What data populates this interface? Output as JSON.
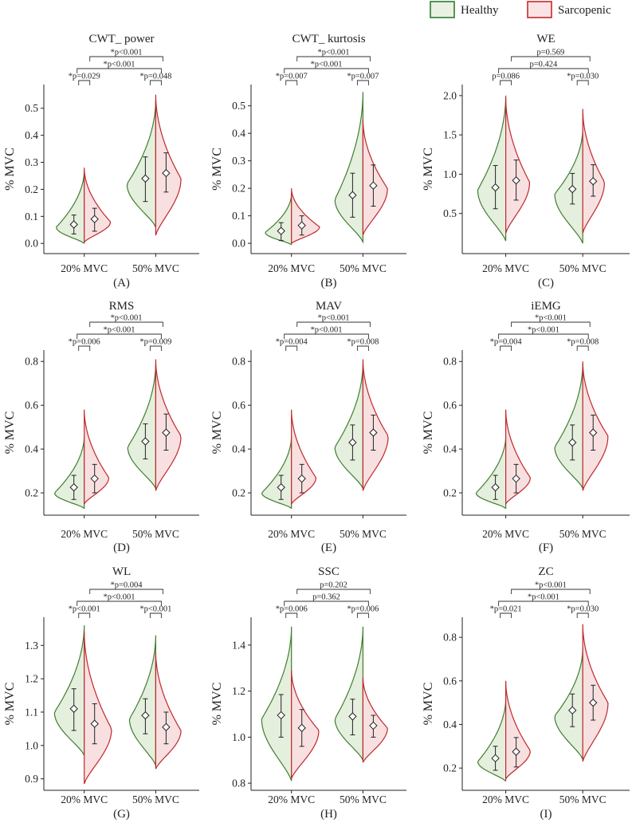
{
  "legend": [
    {
      "label": "Healthy",
      "stroke": "#2e7d32",
      "fill": "#e8f1e2"
    },
    {
      "label": "Sarcopenic",
      "stroke": "#c62828",
      "fill": "#f9e3e4"
    }
  ],
  "colors": {
    "healthy_fill": "#e5efde",
    "healthy_stroke": "#3f7f2e",
    "sarc_fill": "#f8e0e1",
    "sarc_stroke": "#c0282d",
    "bracket": "#333333"
  },
  "chart_data": [
    {
      "type": "violin",
      "title": "CWT_ power",
      "panel": "(A)",
      "ylabel": "% MVC",
      "categories": [
        "20% MVC",
        "50% MVC"
      ],
      "ylim": [
        -0.02,
        0.57
      ],
      "yticks": [
        0.0,
        0.1,
        0.2,
        0.3,
        0.4,
        0.5
      ],
      "tick_labels": [
        "0.0",
        "0.1",
        "0.2",
        "0.3",
        "0.4",
        "0.5"
      ],
      "series": [
        {
          "name": "Healthy",
          "groups": [
            {
              "mean": 0.07,
              "lo": 0.035,
              "hi": 0.105,
              "min": 0.0,
              "max": 0.27,
              "mode": 0.06,
              "width": 0.8
            },
            {
              "mean": 0.24,
              "lo": 0.155,
              "hi": 0.32,
              "min": 0.06,
              "max": 0.53,
              "mode": 0.22,
              "width": 0.82
            }
          ]
        },
        {
          "name": "Sarcopenic",
          "groups": [
            {
              "mean": 0.09,
              "lo": 0.045,
              "hi": 0.13,
              "min": 0.005,
              "max": 0.28,
              "mode": 0.08,
              "width": 0.75
            },
            {
              "mean": 0.26,
              "lo": 0.19,
              "hi": 0.335,
              "min": 0.03,
              "max": 0.55,
              "mode": 0.24,
              "width": 0.72
            }
          ]
        }
      ],
      "comparisons": [
        {
          "text": "*p=0.029",
          "level": 0,
          "g1": 0,
          "g2": 0
        },
        {
          "text": "*p=0.048",
          "level": 0,
          "g1": 1,
          "g2": 1
        },
        {
          "text": "*p<0.001",
          "level": 1,
          "g1": 0,
          "g2": 1,
          "pair": "healthy"
        },
        {
          "text": "*p<0.001",
          "level": 2,
          "g1": 0,
          "g2": 1,
          "pair": "sarc"
        }
      ]
    },
    {
      "type": "violin",
      "title": "CWT_ kurtosis",
      "panel": "(B)",
      "ylabel": "% MVC",
      "categories": [
        "20% MVC",
        "50% MVC"
      ],
      "ylim": [
        -0.02,
        0.56
      ],
      "yticks": [
        0.0,
        0.1,
        0.2,
        0.3,
        0.4,
        0.5
      ],
      "tick_labels": [
        "0.0",
        "0.1",
        "0.2",
        "0.3",
        "0.4",
        "0.5"
      ],
      "series": [
        {
          "name": "Healthy",
          "groups": [
            {
              "mean": 0.045,
              "lo": 0.01,
              "hi": 0.075,
              "min": -0.005,
              "max": 0.18,
              "mode": 0.04,
              "width": 0.75
            },
            {
              "mean": 0.175,
              "lo": 0.095,
              "hi": 0.255,
              "min": 0.005,
              "max": 0.55,
              "mode": 0.16,
              "width": 0.8
            }
          ]
        },
        {
          "name": "Sarcopenic",
          "groups": [
            {
              "mean": 0.065,
              "lo": 0.03,
              "hi": 0.1,
              "min": 0.0,
              "max": 0.2,
              "mode": 0.06,
              "width": 0.8
            },
            {
              "mean": 0.21,
              "lo": 0.135,
              "hi": 0.285,
              "min": 0.03,
              "max": 0.45,
              "mode": 0.2,
              "width": 0.7
            }
          ]
        }
      ],
      "comparisons": [
        {
          "text": "*p=0.007",
          "level": 0,
          "g1": 0,
          "g2": 0
        },
        {
          "text": "*p=0.007",
          "level": 0,
          "g1": 1,
          "g2": 1
        },
        {
          "text": "*p<0.001",
          "level": 1,
          "g1": 0,
          "g2": 1,
          "pair": "healthy"
        },
        {
          "text": "*p<0.001",
          "level": 2,
          "g1": 0,
          "g2": 1,
          "pair": "sarc"
        }
      ]
    },
    {
      "type": "violin",
      "title": "WE",
      "panel": "(C)",
      "ylabel": "% MVC",
      "categories": [
        "20% MVC",
        "50% MVC"
      ],
      "ylim": [
        0.05,
        2.08
      ],
      "yticks": [
        0.5,
        1.0,
        1.5,
        2.0
      ],
      "tick_labels": [
        "0.5",
        "1.0",
        "1.5",
        "2.0"
      ],
      "series": [
        {
          "name": "Healthy",
          "groups": [
            {
              "mean": 0.83,
              "lo": 0.56,
              "hi": 1.11,
              "min": 0.15,
              "max": 2.0,
              "mode": 0.8,
              "width": 0.8
            },
            {
              "mean": 0.81,
              "lo": 0.62,
              "hi": 1.01,
              "min": 0.12,
              "max": 1.58,
              "mode": 0.75,
              "width": 0.8
            }
          ]
        },
        {
          "name": "Sarcopenic",
          "groups": [
            {
              "mean": 0.92,
              "lo": 0.67,
              "hi": 1.18,
              "min": 0.25,
              "max": 1.98,
              "mode": 0.9,
              "width": 0.68
            },
            {
              "mean": 0.91,
              "lo": 0.72,
              "hi": 1.12,
              "min": 0.25,
              "max": 1.83,
              "mode": 0.9,
              "width": 0.62
            }
          ]
        }
      ],
      "comparisons": [
        {
          "text": "p=0.086",
          "level": 0,
          "g1": 0,
          "g2": 0
        },
        {
          "text": "*p=0.030",
          "level": 0,
          "g1": 1,
          "g2": 1
        },
        {
          "text": "p=0.424",
          "level": 1,
          "g1": 0,
          "g2": 1,
          "pair": "healthy"
        },
        {
          "text": "p=0.569",
          "level": 2,
          "g1": 0,
          "g2": 1,
          "pair": "sarc"
        }
      ]
    },
    {
      "type": "violin",
      "title": "RMS",
      "panel": "(D)",
      "ylabel": "% MVC",
      "categories": [
        "20% MVC",
        "50% MVC"
      ],
      "ylim": [
        0.12,
        0.83
      ],
      "yticks": [
        0.2,
        0.4,
        0.6,
        0.8
      ],
      "tick_labels": [
        "0.2",
        "0.4",
        "0.6",
        "0.8"
      ],
      "series": [
        {
          "name": "Healthy",
          "groups": [
            {
              "mean": 0.225,
              "lo": 0.17,
              "hi": 0.28,
              "min": 0.13,
              "max": 0.46,
              "mode": 0.2,
              "width": 0.85
            },
            {
              "mean": 0.435,
              "lo": 0.355,
              "hi": 0.515,
              "min": 0.22,
              "max": 0.79,
              "mode": 0.41,
              "width": 0.8
            }
          ]
        },
        {
          "name": "Sarcopenic",
          "groups": [
            {
              "mean": 0.265,
              "lo": 0.2,
              "hi": 0.33,
              "min": 0.15,
              "max": 0.58,
              "mode": 0.27,
              "width": 0.7
            },
            {
              "mean": 0.475,
              "lo": 0.395,
              "hi": 0.56,
              "min": 0.21,
              "max": 0.81,
              "mode": 0.46,
              "width": 0.72
            }
          ]
        }
      ],
      "comparisons": [
        {
          "text": "*p=0.006",
          "level": 0,
          "g1": 0,
          "g2": 0
        },
        {
          "text": "*p=0.009",
          "level": 0,
          "g1": 1,
          "g2": 1
        },
        {
          "text": "*p<0.001",
          "level": 1,
          "g1": 0,
          "g2": 1,
          "pair": "healthy"
        },
        {
          "text": "*p<0.001",
          "level": 2,
          "g1": 0,
          "g2": 1,
          "pair": "sarc"
        }
      ]
    },
    {
      "type": "violin",
      "title": "MAV",
      "panel": "(E)",
      "ylabel": "% MVC",
      "categories": [
        "20% MVC",
        "50% MVC"
      ],
      "ylim": [
        0.12,
        0.83
      ],
      "yticks": [
        0.2,
        0.4,
        0.6,
        0.8
      ],
      "tick_labels": [
        "0.2",
        "0.4",
        "0.6",
        "0.8"
      ],
      "series": [
        {
          "name": "Healthy",
          "groups": [
            {
              "mean": 0.225,
              "lo": 0.17,
              "hi": 0.28,
              "min": 0.13,
              "max": 0.46,
              "mode": 0.2,
              "width": 0.85
            },
            {
              "mean": 0.43,
              "lo": 0.35,
              "hi": 0.51,
              "min": 0.22,
              "max": 0.79,
              "mode": 0.41,
              "width": 0.8
            }
          ]
        },
        {
          "name": "Sarcopenic",
          "groups": [
            {
              "mean": 0.265,
              "lo": 0.2,
              "hi": 0.33,
              "min": 0.15,
              "max": 0.58,
              "mode": 0.27,
              "width": 0.7
            },
            {
              "mean": 0.475,
              "lo": 0.395,
              "hi": 0.555,
              "min": 0.21,
              "max": 0.81,
              "mode": 0.46,
              "width": 0.72
            }
          ]
        }
      ],
      "comparisons": [
        {
          "text": "*p=0.004",
          "level": 0,
          "g1": 0,
          "g2": 0
        },
        {
          "text": "*p=0.008",
          "level": 0,
          "g1": 1,
          "g2": 1
        },
        {
          "text": "*p<0.001",
          "level": 1,
          "g1": 0,
          "g2": 1,
          "pair": "healthy"
        },
        {
          "text": "*p<0.001",
          "level": 2,
          "g1": 0,
          "g2": 1,
          "pair": "sarc"
        }
      ]
    },
    {
      "type": "violin",
      "title": "iEMG",
      "panel": "(F)",
      "ylabel": "% MVC",
      "categories": [
        "20% MVC",
        "50% MVC"
      ],
      "ylim": [
        0.12,
        0.83
      ],
      "yticks": [
        0.2,
        0.4,
        0.6,
        0.8
      ],
      "tick_labels": [
        "0.2",
        "0.4",
        "0.6",
        "0.8"
      ],
      "series": [
        {
          "name": "Healthy",
          "groups": [
            {
              "mean": 0.225,
              "lo": 0.17,
              "hi": 0.28,
              "min": 0.13,
              "max": 0.46,
              "mode": 0.2,
              "width": 0.85
            },
            {
              "mean": 0.43,
              "lo": 0.35,
              "hi": 0.51,
              "min": 0.22,
              "max": 0.79,
              "mode": 0.41,
              "width": 0.8
            }
          ]
        },
        {
          "name": "Sarcopenic",
          "groups": [
            {
              "mean": 0.265,
              "lo": 0.2,
              "hi": 0.33,
              "min": 0.15,
              "max": 0.58,
              "mode": 0.27,
              "width": 0.7
            },
            {
              "mean": 0.475,
              "lo": 0.395,
              "hi": 0.555,
              "min": 0.21,
              "max": 0.8,
              "mode": 0.46,
              "width": 0.72
            }
          ]
        }
      ],
      "comparisons": [
        {
          "text": "*p=0.004",
          "level": 0,
          "g1": 0,
          "g2": 0
        },
        {
          "text": "*p=0.008",
          "level": 0,
          "g1": 1,
          "g2": 1
        },
        {
          "text": "*p<0.001",
          "level": 1,
          "g1": 0,
          "g2": 1,
          "pair": "healthy"
        },
        {
          "text": "*p<0.001",
          "level": 2,
          "g1": 0,
          "g2": 1,
          "pair": "sarc"
        }
      ]
    },
    {
      "type": "violin",
      "title": "WL",
      "panel": "(G)",
      "ylabel": "% MVC",
      "categories": [
        "20% MVC",
        "50% MVC"
      ],
      "ylim": [
        0.88,
        1.37
      ],
      "yticks": [
        0.9,
        1.0,
        1.1,
        1.2,
        1.3
      ],
      "tick_labels": [
        "0.9",
        "1.0",
        "1.1",
        "1.2",
        "1.3"
      ],
      "series": [
        {
          "name": "Healthy",
          "groups": [
            {
              "mean": 1.11,
              "lo": 1.045,
              "hi": 1.17,
              "min": 0.97,
              "max": 1.36,
              "mode": 1.1,
              "width": 0.85
            },
            {
              "mean": 1.09,
              "lo": 1.035,
              "hi": 1.14,
              "min": 0.94,
              "max": 1.33,
              "mode": 1.08,
              "width": 0.75
            }
          ]
        },
        {
          "name": "Sarcopenic",
          "groups": [
            {
              "mean": 1.065,
              "lo": 1.005,
              "hi": 1.125,
              "min": 0.885,
              "max": 1.34,
              "mode": 1.05,
              "width": 0.78
            },
            {
              "mean": 1.055,
              "lo": 1.005,
              "hi": 1.1,
              "min": 0.93,
              "max": 1.28,
              "mode": 1.045,
              "width": 0.72
            }
          ]
        }
      ],
      "comparisons": [
        {
          "text": "*p<0.001",
          "level": 0,
          "g1": 0,
          "g2": 0
        },
        {
          "text": "*p<0.001",
          "level": 0,
          "g1": 1,
          "g2": 1
        },
        {
          "text": "*p<0.001",
          "level": 1,
          "g1": 0,
          "g2": 1,
          "pair": "healthy"
        },
        {
          "text": "*p=0.004",
          "level": 2,
          "g1": 0,
          "g2": 1,
          "pair": "sarc"
        }
      ]
    },
    {
      "type": "violin",
      "title": "SSC",
      "panel": "(H)",
      "ylabel": "% MVC",
      "categories": [
        "20% MVC",
        "50% MVC"
      ],
      "ylim": [
        0.79,
        1.5
      ],
      "yticks": [
        0.8,
        1.0,
        1.2,
        1.4
      ],
      "tick_labels": [
        "0.8",
        "1.0",
        "1.2",
        "1.4"
      ],
      "series": [
        {
          "name": "Healthy",
          "groups": [
            {
              "mean": 1.095,
              "lo": 1.0,
              "hi": 1.185,
              "min": 0.81,
              "max": 1.48,
              "mode": 1.08,
              "width": 0.85
            },
            {
              "mean": 1.09,
              "lo": 1.01,
              "hi": 1.165,
              "min": 0.9,
              "max": 1.48,
              "mode": 1.08,
              "width": 0.8
            }
          ]
        },
        {
          "name": "Sarcopenic",
          "groups": [
            {
              "mean": 1.04,
              "lo": 0.96,
              "hi": 1.12,
              "min": 0.82,
              "max": 1.29,
              "mode": 1.03,
              "width": 0.78
            },
            {
              "mean": 1.05,
              "lo": 1.0,
              "hi": 1.095,
              "min": 0.89,
              "max": 1.26,
              "mode": 1.04,
              "width": 0.7
            }
          ]
        }
      ],
      "comparisons": [
        {
          "text": "*p=0.006",
          "level": 0,
          "g1": 0,
          "g2": 0
        },
        {
          "text": "*p=0.006",
          "level": 0,
          "g1": 1,
          "g2": 1
        },
        {
          "text": "p=0.362",
          "level": 1,
          "g1": 0,
          "g2": 1,
          "pair": "healthy"
        },
        {
          "text": "p=0.202",
          "level": 2,
          "g1": 0,
          "g2": 1,
          "pair": "sarc"
        }
      ]
    },
    {
      "type": "violin",
      "title": "ZC",
      "panel": "(I)",
      "ylabel": "% MVC",
      "categories": [
        "20% MVC",
        "50% MVC"
      ],
      "ylim": [
        0.12,
        0.87
      ],
      "yticks": [
        0.2,
        0.4,
        0.6,
        0.8
      ],
      "tick_labels": [
        "0.2",
        "0.4",
        "0.6",
        "0.8"
      ],
      "series": [
        {
          "name": "Healthy",
          "groups": [
            {
              "mean": 0.245,
              "lo": 0.19,
              "hi": 0.3,
              "min": 0.14,
              "max": 0.52,
              "mode": 0.23,
              "width": 0.8
            },
            {
              "mean": 0.465,
              "lo": 0.39,
              "hi": 0.54,
              "min": 0.24,
              "max": 0.75,
              "mode": 0.44,
              "width": 0.8
            }
          ]
        },
        {
          "name": "Sarcopenic",
          "groups": [
            {
              "mean": 0.275,
              "lo": 0.205,
              "hi": 0.34,
              "min": 0.15,
              "max": 0.6,
              "mode": 0.28,
              "width": 0.7
            },
            {
              "mean": 0.5,
              "lo": 0.42,
              "hi": 0.58,
              "min": 0.23,
              "max": 0.86,
              "mode": 0.5,
              "width": 0.72
            }
          ]
        }
      ],
      "comparisons": [
        {
          "text": "*p=0.021",
          "level": 0,
          "g1": 0,
          "g2": 0
        },
        {
          "text": "*p=0.030",
          "level": 0,
          "g1": 1,
          "g2": 1
        },
        {
          "text": "*p<0.001",
          "level": 1,
          "g1": 0,
          "g2": 1,
          "pair": "healthy"
        },
        {
          "text": "*p<0.001",
          "level": 2,
          "g1": 0,
          "g2": 1,
          "pair": "sarc"
        }
      ]
    }
  ]
}
